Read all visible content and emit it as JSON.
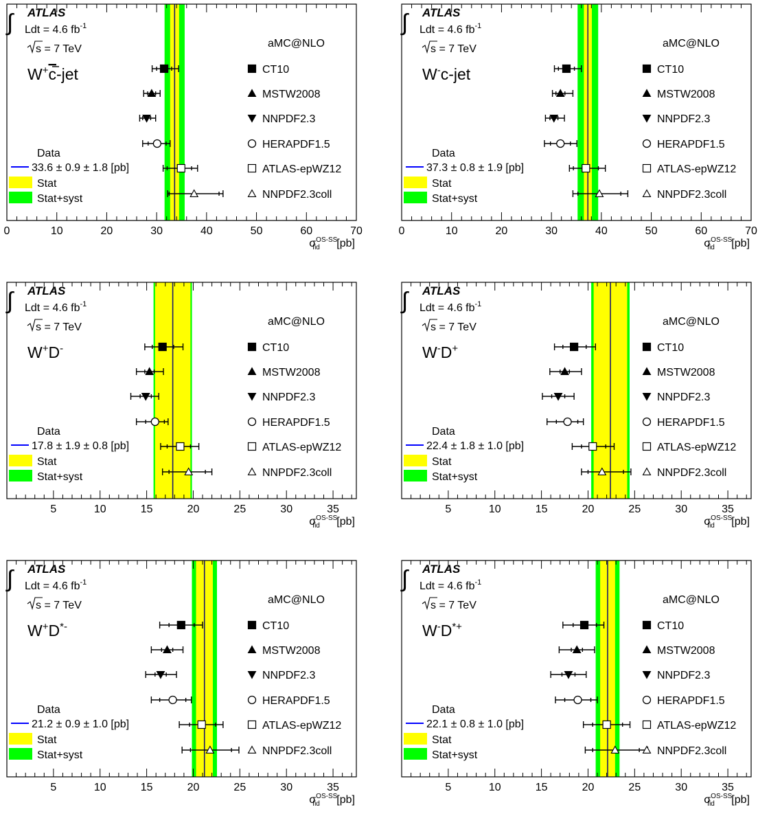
{
  "chart_data": [
    {
      "type": "scatter",
      "experiment": "ATLAS",
      "lumi_prefix": "Ldt = 4.6 fb",
      "lumi_exp": "-1",
      "energy_prefix": "s",
      "energy_rest": " = 7 TeV",
      "generator": "aMC@NLO",
      "process_parts": [
        {
          "t": "W",
          "s": "n"
        },
        {
          "t": "+",
          "s": "sup"
        },
        {
          "t": "c",
          "s": "over"
        },
        {
          "t": "-jet",
          "s": "n"
        }
      ],
      "data_label": "Data",
      "data_value": "33.6 ± 0.9 ± 1.8 [pb]",
      "stat_label": "Stat",
      "syst_label": "Stat+syst",
      "xlabel_base": "σ",
      "xlabel_sup": "OS-SS",
      "xlabel_sub": "fid",
      "xlabel_unit": " [pb]",
      "xlim": [
        0,
        70
      ],
      "xticks": [
        0,
        10,
        20,
        30,
        40,
        50,
        60,
        70
      ],
      "data": {
        "value": 33.6,
        "stat": 0.9,
        "syst": 1.8
      },
      "predictions": [
        {
          "name": "CT10",
          "marker": "filled-square",
          "value": 31.5,
          "inner": [
            30.0,
            33.0
          ],
          "outer": [
            29.1,
            34.4
          ]
        },
        {
          "name": "MSTW2008",
          "marker": "filled-triangle-up",
          "value": 29.0,
          "inner": [
            28.2,
            29.8
          ],
          "outer": [
            27.4,
            30.7
          ]
        },
        {
          "name": "NNPDF2.3",
          "marker": "filled-triangle-down",
          "value": 28.0,
          "inner": [
            27.2,
            28.8
          ],
          "outer": [
            26.6,
            29.8
          ]
        },
        {
          "name": "HERAPDF1.5",
          "marker": "open-circle",
          "value": 30.1,
          "inner": [
            28.3,
            31.9
          ],
          "outer": [
            27.2,
            32.7
          ]
        },
        {
          "name": "ATLAS-epWZ12",
          "marker": "open-square",
          "value": 34.9,
          "inner": [
            32.1,
            37.0
          ],
          "outer": [
            31.3,
            38.2
          ]
        },
        {
          "name": "NNPDF2.3coll",
          "marker": "open-triangle-up",
          "value": 37.5,
          "inner": [
            32.5,
            42.5
          ],
          "outer": [
            32.2,
            43.3
          ]
        }
      ]
    },
    {
      "type": "scatter",
      "experiment": "ATLAS",
      "lumi_prefix": "Ldt = 4.6 fb",
      "lumi_exp": "-1",
      "energy_prefix": "s",
      "energy_rest": " = 7 TeV",
      "generator": "aMC@NLO",
      "process_parts": [
        {
          "t": "W",
          "s": "n"
        },
        {
          "t": "-",
          "s": "sup"
        },
        {
          "t": "c-jet",
          "s": "n"
        }
      ],
      "data_label": "Data",
      "data_value": "37.3 ± 0.8 ± 1.9 [pb]",
      "stat_label": "Stat",
      "syst_label": "Stat+syst",
      "xlabel_base": "σ",
      "xlabel_sup": "OS-SS",
      "xlabel_sub": "fid",
      "xlabel_unit": " [pb]",
      "xlim": [
        0,
        70
      ],
      "xticks": [
        0,
        10,
        20,
        30,
        40,
        50,
        60,
        70
      ],
      "data": {
        "value": 37.3,
        "stat": 0.8,
        "syst": 1.9
      },
      "predictions": [
        {
          "name": "CT10",
          "marker": "filled-square",
          "value": 33.0,
          "inner": [
            31.4,
            34.6
          ],
          "outer": [
            30.6,
            36.0
          ]
        },
        {
          "name": "MSTW2008",
          "marker": "filled-triangle-up",
          "value": 31.8,
          "inner": [
            30.9,
            32.7
          ],
          "outer": [
            30.2,
            34.3
          ]
        },
        {
          "name": "NNPDF2.3",
          "marker": "filled-triangle-down",
          "value": 30.5,
          "inner": [
            29.7,
            31.3
          ],
          "outer": [
            28.8,
            32.6
          ]
        },
        {
          "name": "HERAPDF1.5",
          "marker": "open-circle",
          "value": 31.8,
          "inner": [
            29.8,
            33.8
          ],
          "outer": [
            28.6,
            35.1
          ]
        },
        {
          "name": "ATLAS-epWZ12",
          "marker": "open-square",
          "value": 36.9,
          "inner": [
            34.4,
            39.4
          ],
          "outer": [
            33.6,
            40.8
          ]
        },
        {
          "name": "NNPDF2.3coll",
          "marker": "open-triangle-up",
          "value": 39.6,
          "inner": [
            35.3,
            43.9
          ],
          "outer": [
            34.3,
            45.3
          ]
        }
      ]
    },
    {
      "type": "scatter",
      "experiment": "ATLAS",
      "lumi_prefix": "Ldt = 4.6 fb",
      "lumi_exp": "-1",
      "energy_prefix": "s",
      "energy_rest": " = 7 TeV",
      "generator": "aMC@NLO",
      "process_parts": [
        {
          "t": "W",
          "s": "n"
        },
        {
          "t": "+",
          "s": "sup"
        },
        {
          "t": "D",
          "s": "n"
        },
        {
          "t": "-",
          "s": "sup"
        }
      ],
      "data_label": "Data",
      "data_value": "17.8 ± 1.9 ± 0.8 [pb]",
      "stat_label": "Stat",
      "syst_label": "Stat+syst",
      "xlabel_base": "σ",
      "xlabel_sup": "OS-SS",
      "xlabel_sub": "fid",
      "xlabel_unit": " [pb]",
      "xlim": [
        0,
        37.5
      ],
      "xticks": [
        5,
        10,
        15,
        20,
        25,
        30,
        35
      ],
      "data": {
        "value": 17.8,
        "stat": 1.9,
        "syst": 0.8
      },
      "predictions": [
        {
          "name": "CT10",
          "marker": "filled-square",
          "value": 16.7,
          "inner": [
            15.6,
            17.9
          ],
          "outer": [
            14.8,
            18.9
          ]
        },
        {
          "name": "MSTW2008",
          "marker": "filled-triangle-up",
          "value": 15.3,
          "inner": [
            14.8,
            15.8
          ],
          "outer": [
            13.9,
            16.8
          ]
        },
        {
          "name": "NNPDF2.3",
          "marker": "filled-triangle-down",
          "value": 14.9,
          "inner": [
            14.3,
            15.5
          ],
          "outer": [
            13.3,
            16.3
          ]
        },
        {
          "name": "HERAPDF1.5",
          "marker": "open-circle",
          "value": 15.9,
          "inner": [
            14.9,
            16.9
          ],
          "outer": [
            13.9,
            17.3
          ]
        },
        {
          "name": "ATLAS-epWZ12",
          "marker": "open-square",
          "value": 18.6,
          "inner": [
            17.2,
            19.7
          ],
          "outer": [
            16.5,
            20.6
          ]
        },
        {
          "name": "NNPDF2.3coll",
          "marker": "open-triangle-up",
          "value": 19.5,
          "inner": [
            17.4,
            21.3
          ],
          "outer": [
            16.7,
            22.0
          ]
        }
      ]
    },
    {
      "type": "scatter",
      "experiment": "ATLAS",
      "lumi_prefix": "Ldt = 4.6 fb",
      "lumi_exp": "-1",
      "energy_prefix": "s",
      "energy_rest": " = 7 TeV",
      "generator": "aMC@NLO",
      "process_parts": [
        {
          "t": "W",
          "s": "n"
        },
        {
          "t": "-",
          "s": "sup"
        },
        {
          "t": "D",
          "s": "n"
        },
        {
          "t": "+",
          "s": "sup"
        }
      ],
      "data_label": "Data",
      "data_value": "22.4 ± 1.8 ± 1.0 [pb]",
      "stat_label": "Stat",
      "syst_label": "Stat+syst",
      "xlabel_base": "σ",
      "xlabel_sup": "OS-SS",
      "xlabel_sub": "fid",
      "xlabel_unit": " [pb]",
      "xlim": [
        0,
        37.5
      ],
      "xticks": [
        5,
        10,
        15,
        20,
        25,
        30,
        35
      ],
      "data": {
        "value": 22.4,
        "stat": 1.8,
        "syst": 1.0
      },
      "predictions": [
        {
          "name": "CT10",
          "marker": "filled-square",
          "value": 18.5,
          "inner": [
            17.3,
            19.8
          ],
          "outer": [
            16.4,
            20.8
          ]
        },
        {
          "name": "MSTW2008",
          "marker": "filled-triangle-up",
          "value": 17.5,
          "inner": [
            17.0,
            18.0
          ],
          "outer": [
            15.9,
            19.3
          ]
        },
        {
          "name": "NNPDF2.3",
          "marker": "filled-triangle-down",
          "value": 16.8,
          "inner": [
            16.1,
            17.5
          ],
          "outer": [
            15.1,
            18.5
          ]
        },
        {
          "name": "HERAPDF1.5",
          "marker": "open-circle",
          "value": 17.8,
          "inner": [
            16.6,
            18.9
          ],
          "outer": [
            15.6,
            19.5
          ]
        },
        {
          "name": "ATLAS-epWZ12",
          "marker": "open-square",
          "value": 20.5,
          "inner": [
            19.3,
            21.9
          ],
          "outer": [
            18.3,
            22.8
          ]
        },
        {
          "name": "NNPDF2.3coll",
          "marker": "open-triangle-up",
          "value": 21.5,
          "inner": [
            20.0,
            23.8
          ],
          "outer": [
            19.3,
            24.6
          ]
        }
      ]
    },
    {
      "type": "scatter",
      "experiment": "ATLAS",
      "lumi_prefix": "Ldt = 4.6 fb",
      "lumi_exp": "-1",
      "energy_prefix": "s",
      "energy_rest": " = 7 TeV",
      "generator": "aMC@NLO",
      "process_parts": [
        {
          "t": "W",
          "s": "n"
        },
        {
          "t": "+",
          "s": "sup"
        },
        {
          "t": "D",
          "s": "n"
        },
        {
          "t": "*-",
          "s": "sup"
        }
      ],
      "data_label": "Data",
      "data_value": "21.2 ± 0.9 ± 1.0 [pb]",
      "stat_label": "Stat",
      "syst_label": "Stat+syst",
      "xlabel_base": "σ",
      "xlabel_sup": "OS-SS",
      "xlabel_sub": "fid",
      "xlabel_unit": " [pb]",
      "xlim": [
        0,
        37.5
      ],
      "xticks": [
        5,
        10,
        15,
        20,
        25,
        30,
        35
      ],
      "data": {
        "value": 21.2,
        "stat": 0.9,
        "syst": 1.0
      },
      "predictions": [
        {
          "name": "CT10",
          "marker": "filled-square",
          "value": 18.7,
          "inner": [
            17.4,
            20.1
          ],
          "outer": [
            16.4,
            21.0
          ]
        },
        {
          "name": "MSTW2008",
          "marker": "filled-triangle-up",
          "value": 17.2,
          "inner": [
            16.6,
            17.8
          ],
          "outer": [
            15.5,
            18.9
          ]
        },
        {
          "name": "NNPDF2.3",
          "marker": "filled-triangle-down",
          "value": 16.5,
          "inner": [
            15.9,
            17.1
          ],
          "outer": [
            14.9,
            18.2
          ]
        },
        {
          "name": "HERAPDF1.5",
          "marker": "open-circle",
          "value": 17.8,
          "inner": [
            16.4,
            19.2
          ],
          "outer": [
            15.5,
            19.8
          ]
        },
        {
          "name": "ATLAS-epWZ12",
          "marker": "open-square",
          "value": 20.9,
          "inner": [
            19.6,
            22.4
          ],
          "outer": [
            18.5,
            23.2
          ]
        },
        {
          "name": "NNPDF2.3coll",
          "marker": "open-triangle-up",
          "value": 21.8,
          "inner": [
            19.7,
            24.1
          ],
          "outer": [
            18.8,
            24.9
          ]
        }
      ]
    },
    {
      "type": "scatter",
      "experiment": "ATLAS",
      "lumi_prefix": "Ldt = 4.6 fb",
      "lumi_exp": "-1",
      "energy_prefix": "s",
      "energy_rest": " = 7 TeV",
      "generator": "aMC@NLO",
      "process_parts": [
        {
          "t": "W",
          "s": "n"
        },
        {
          "t": "-",
          "s": "sup"
        },
        {
          "t": "D",
          "s": "n"
        },
        {
          "t": "*+",
          "s": "sup"
        }
      ],
      "data_label": "Data",
      "data_value": "22.1 ± 0.8 ± 1.0 [pb]",
      "stat_label": "Stat",
      "syst_label": "Stat+syst",
      "xlabel_base": "σ",
      "xlabel_sup": "OS-SS",
      "xlabel_sub": "fid",
      "xlabel_unit": " [pb]",
      "xlim": [
        0,
        37.5
      ],
      "xticks": [
        5,
        10,
        15,
        20,
        25,
        30,
        35
      ],
      "data": {
        "value": 22.1,
        "stat": 0.8,
        "syst": 1.0
      },
      "predictions": [
        {
          "name": "CT10",
          "marker": "filled-square",
          "value": 19.6,
          "inner": [
            18.4,
            20.9
          ],
          "outer": [
            17.3,
            21.7
          ]
        },
        {
          "name": "MSTW2008",
          "marker": "filled-triangle-up",
          "value": 18.8,
          "inner": [
            18.2,
            19.4
          ],
          "outer": [
            16.9,
            20.7
          ]
        },
        {
          "name": "NNPDF2.3",
          "marker": "filled-triangle-down",
          "value": 17.9,
          "inner": [
            17.2,
            18.6
          ],
          "outer": [
            16.0,
            19.8
          ]
        },
        {
          "name": "HERAPDF1.5",
          "marker": "open-circle",
          "value": 18.9,
          "inner": [
            17.5,
            20.3
          ],
          "outer": [
            16.5,
            21.0
          ]
        },
        {
          "name": "ATLAS-epWZ12",
          "marker": "open-square",
          "value": 22.0,
          "inner": [
            20.5,
            23.7
          ],
          "outer": [
            19.5,
            24.5
          ]
        },
        {
          "name": "NNPDF2.3coll",
          "marker": "open-triangle-up",
          "value": 22.9,
          "inner": [
            20.5,
            25.5
          ],
          "outer": [
            19.7,
            26.4
          ]
        }
      ]
    }
  ]
}
